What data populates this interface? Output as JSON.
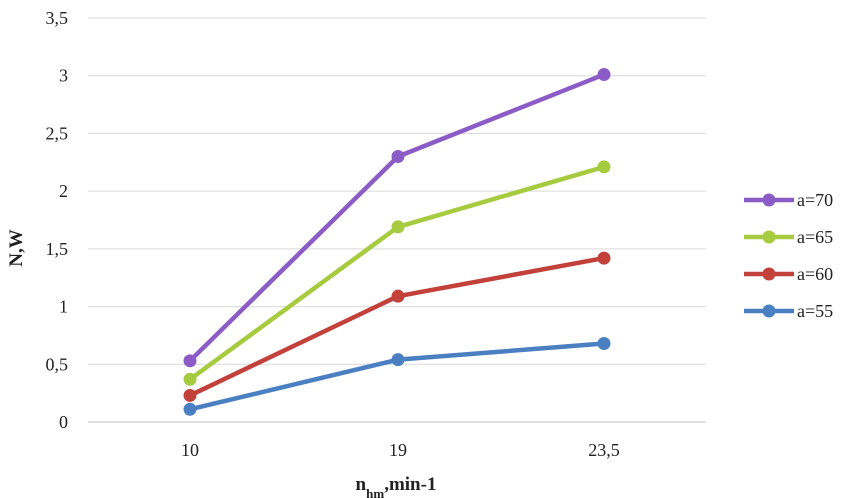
{
  "chart_data": {
    "type": "line",
    "categories": [
      "10",
      "19",
      "23,5"
    ],
    "series": [
      {
        "name": "a=70",
        "color": "#8b5cc6",
        "values": [
          0.53,
          2.3,
          3.01
        ]
      },
      {
        "name": "a=65",
        "color": "#a6cb3f",
        "values": [
          0.37,
          1.69,
          2.21
        ]
      },
      {
        "name": "a=60",
        "color": "#c2413b",
        "values": [
          0.23,
          1.09,
          1.42
        ]
      },
      {
        "name": "a=55",
        "color": "#4a7fc1",
        "values": [
          0.11,
          0.54,
          0.68
        ]
      }
    ],
    "y_ticks": [
      "0",
      "0,5",
      "1",
      "1,5",
      "2",
      "2,5",
      "3",
      "3,5"
    ],
    "ylim": [
      0,
      3.5
    ],
    "ylabel": "N,W",
    "xlabel_main": "n",
    "xlabel_sub": "hm",
    "xlabel_tail": ",min-1",
    "grid": true,
    "legend_position": "right"
  }
}
